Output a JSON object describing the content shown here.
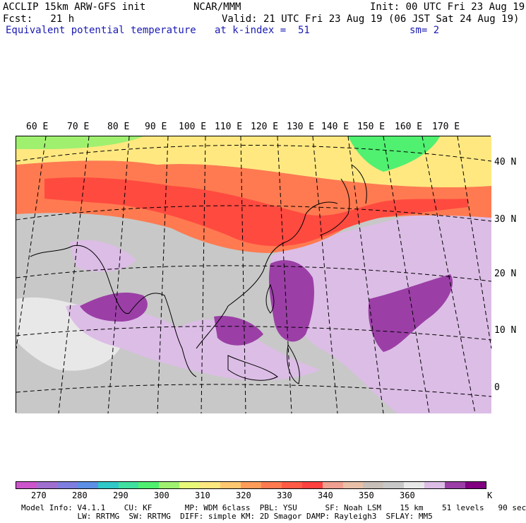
{
  "header": {
    "line1_left": "ACCLIP 15km ARW-GFS init",
    "line1_center": "NCAR/MMM",
    "line1_right": "Init: 00 UTC Fri 23 Aug 19",
    "line2_left": "Fcst:   21 h",
    "line2_right": "Valid: 21 UTC Fri 23 Aug 19 (06 JST Sat 24 Aug 19)",
    "line3_left": "Equivalent potential temperature",
    "line3_center": "at k-index =  51",
    "line3_right": "sm= 2"
  },
  "map": {
    "lon_labels": [
      "60 E",
      "70 E",
      "80 E",
      "90 E",
      "100 E",
      "110 E",
      "120 E",
      "130 E",
      "140 E",
      "150 E",
      "160 E",
      "170 E"
    ],
    "lat_labels": [
      "40 N",
      "30 N",
      "20 N",
      "10 N",
      "0"
    ],
    "colors": {
      "cold_band": "#ffe880",
      "warm_band": "#ff5a45",
      "tropics_gray": "#c8c8c8",
      "tropics_light": "#e8e8e8",
      "moist_lilac": "#dcbde6",
      "moist_purple": "#9b3fa6"
    }
  },
  "colorbar": {
    "colors": [
      "#cc55cc",
      "#a070d0",
      "#7e7ee0",
      "#5d8fe6",
      "#30c8c8",
      "#40e0a0",
      "#50f070",
      "#a0f070",
      "#e8f878",
      "#ffe880",
      "#ffc870",
      "#ff9c5a",
      "#ff7a50",
      "#ff5a45",
      "#ff4040",
      "#f0a090",
      "#e8c0a8",
      "#c8c0b8",
      "#c8c8c8",
      "#e8e8e8",
      "#dcbde6",
      "#9b3fa6",
      "#800080"
    ],
    "labels": [
      "270",
      "280",
      "290",
      "300",
      "310",
      "320",
      "330",
      "340",
      "350",
      "360"
    ],
    "unit": "K"
  },
  "model_info": {
    "line1": "Model Info: V4.1.1    CU: KF       MP: WDM 6class  PBL: YSU      SF: Noah LSM    15 km    51 levels   90 sec",
    "line2": "            LW: RRTMG  SW: RRTMG  DIFF: simple KM: 2D Smagor DAMP: Rayleigh3  SFLAY: MM5"
  }
}
